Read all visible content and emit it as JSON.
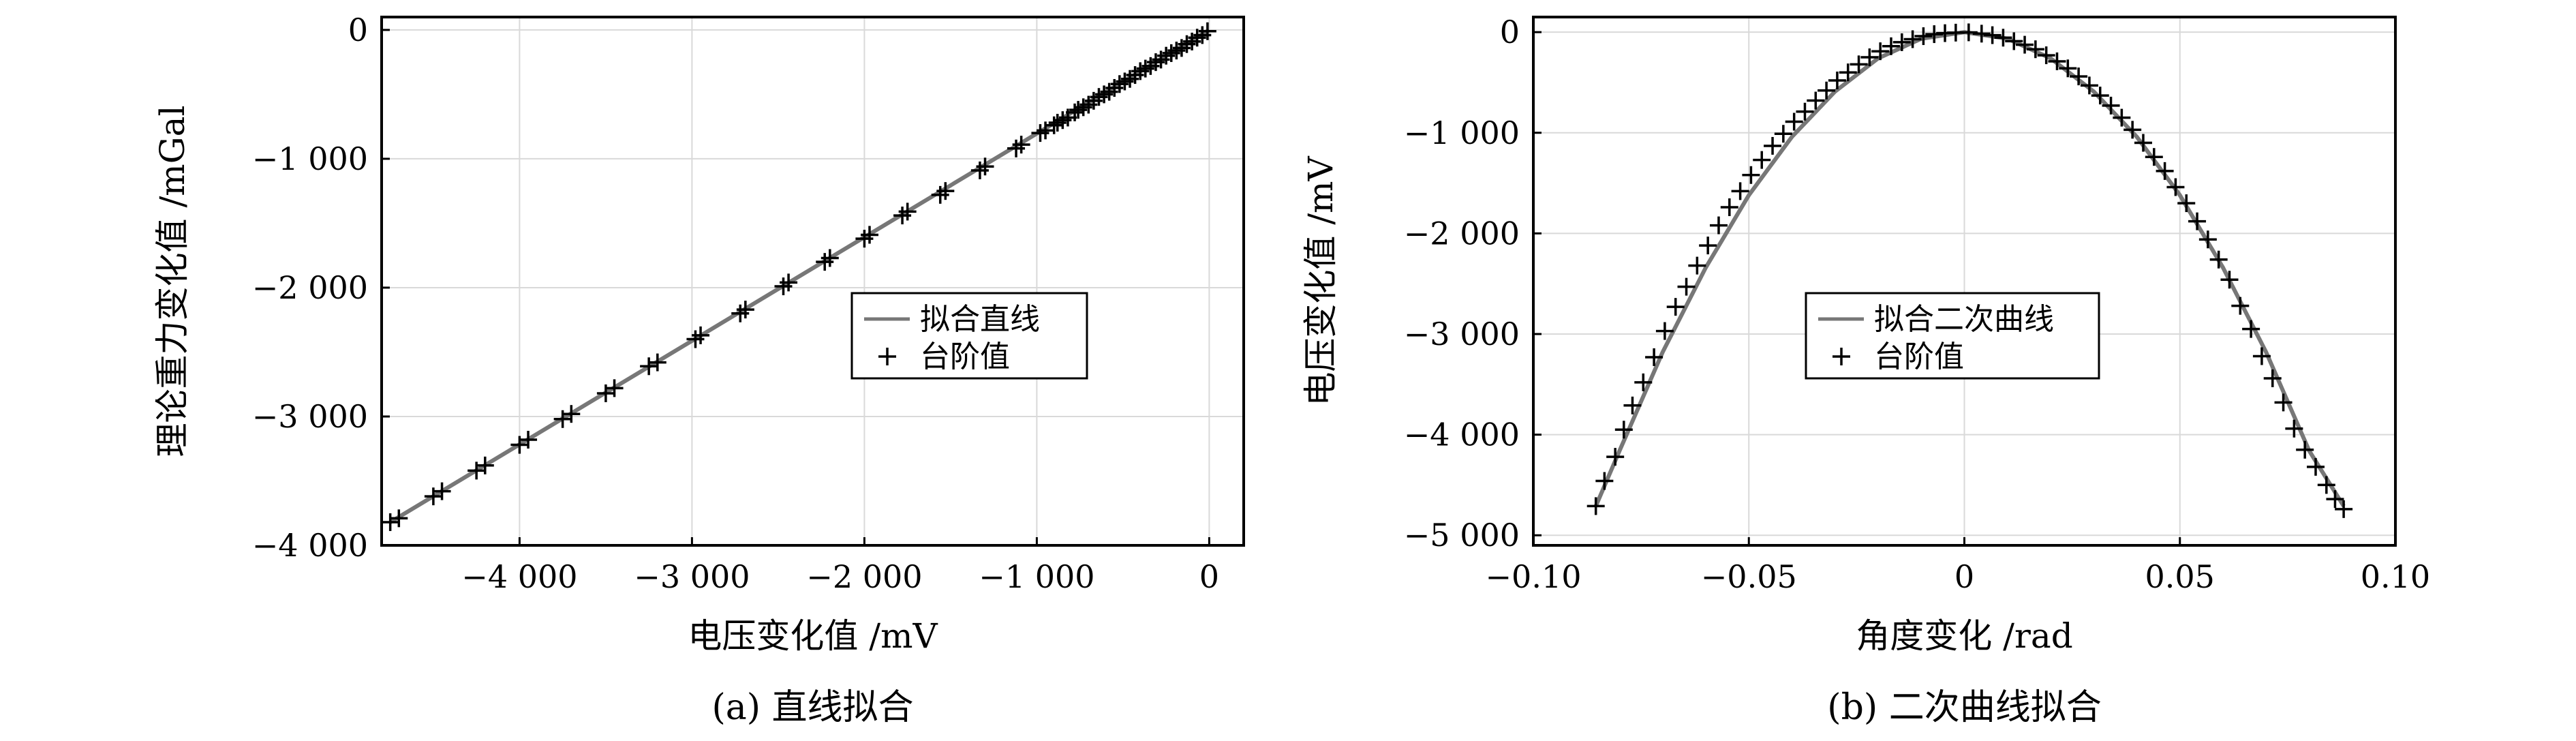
{
  "chart_data": [
    {
      "type": "scatter",
      "caption": "(a) 直线拟合",
      "xlabel": "电压变化值 /mV",
      "ylabel": "理论重力变化值 /mGal",
      "xlim": [
        -4800,
        200
      ],
      "ylim": [
        -4000,
        100
      ],
      "xticks": [
        -4000,
        -3000,
        -2000,
        -1000,
        0
      ],
      "xtick_labels": [
        "−4 000",
        "−3 000",
        "−2 000",
        "−1 000",
        "0"
      ],
      "yticks": [
        0,
        -1000,
        -2000,
        -3000,
        -4000
      ],
      "ytick_labels": [
        "0",
        "−1 000",
        "−2 000",
        "−3 000",
        "−4 000"
      ],
      "grid": true,
      "legend_position": "center-right",
      "series": [
        {
          "name": "拟合直线",
          "kind": "line",
          "color": "#777777",
          "x": [
            -4750,
            0
          ],
          "y": [
            -3820,
            0
          ]
        },
        {
          "name": "台阶值",
          "kind": "marker",
          "marker": "+",
          "color": "#000000",
          "x": [
            -4750,
            -4700,
            -4500,
            -4450,
            -4250,
            -4200,
            -4000,
            -3950,
            -3750,
            -3700,
            -3500,
            -3450,
            -3250,
            -3200,
            -2980,
            -2950,
            -2720,
            -2690,
            -2470,
            -2440,
            -2230,
            -2200,
            -2000,
            -1970,
            -1780,
            -1750,
            -1560,
            -1530,
            -1330,
            -1300,
            -1120,
            -1090,
            -980,
            -950,
            -900,
            -880,
            -850,
            -820,
            -780,
            -760,
            -730,
            -700,
            -670,
            -640,
            -610,
            -580,
            -550,
            -520,
            -490,
            -460,
            -430,
            -400,
            -370,
            -340,
            -310,
            -280,
            -250,
            -220,
            -190,
            -160,
            -130,
            -100,
            -70,
            -40,
            -10
          ],
          "y": [
            -3820,
            -3790,
            -3620,
            -3580,
            -3420,
            -3380,
            -3220,
            -3180,
            -3020,
            -2980,
            -2820,
            -2780,
            -2610,
            -2580,
            -2400,
            -2370,
            -2200,
            -2170,
            -1990,
            -1960,
            -1800,
            -1770,
            -1620,
            -1590,
            -1440,
            -1410,
            -1280,
            -1250,
            -1090,
            -1060,
            -920,
            -890,
            -800,
            -780,
            -740,
            -720,
            -700,
            -680,
            -640,
            -620,
            -600,
            -580,
            -550,
            -520,
            -500,
            -480,
            -450,
            -420,
            -400,
            -380,
            -350,
            -320,
            -300,
            -280,
            -250,
            -230,
            -200,
            -180,
            -160,
            -140,
            -110,
            -90,
            -60,
            -40,
            -10
          ]
        }
      ]
    },
    {
      "type": "scatter",
      "caption": "(b) 二次曲线拟合",
      "xlabel": "角度变化 /rad",
      "ylabel": "电压变化值 /mV",
      "xlim": [
        -0.1,
        0.1
      ],
      "ylim": [
        -5100,
        150
      ],
      "xticks": [
        -0.1,
        -0.05,
        0,
        0.05,
        0.1
      ],
      "xtick_labels": [
        "−0.10",
        "−0.05",
        "0",
        "0.05",
        "0.10"
      ],
      "yticks": [
        0,
        -1000,
        -2000,
        -3000,
        -4000,
        -5000
      ],
      "ytick_labels": [
        "0",
        "−1 000",
        "−2 000",
        "−3 000",
        "−4 000",
        "−5 000"
      ],
      "grid": true,
      "legend_position": "center-right",
      "series": [
        {
          "name": "拟合二次曲线",
          "kind": "line",
          "color": "#777777",
          "x": [
            -0.0855,
            -0.08,
            -0.07,
            -0.06,
            -0.05,
            -0.04,
            -0.03,
            -0.02,
            -0.01,
            0,
            0.01,
            0.02,
            0.03,
            0.04,
            0.05,
            0.06,
            0.07,
            0.08,
            0.088
          ],
          "y": [
            -4710,
            -4160,
            -3180,
            -2340,
            -1620,
            -1040,
            -590,
            -260,
            -65,
            0,
            -65,
            -260,
            -590,
            -1040,
            -1620,
            -2340,
            -3180,
            -4160,
            -4710
          ]
        },
        {
          "name": "台阶值",
          "kind": "marker",
          "marker": "+",
          "color": "#000000",
          "x": [
            -0.0855,
            -0.0835,
            -0.081,
            -0.079,
            -0.077,
            -0.0745,
            -0.072,
            -0.0695,
            -0.067,
            -0.0645,
            -0.062,
            -0.0595,
            -0.057,
            -0.0545,
            -0.052,
            -0.0495,
            -0.047,
            -0.0445,
            -0.042,
            -0.0395,
            -0.037,
            -0.0345,
            -0.032,
            -0.0295,
            -0.027,
            -0.0245,
            -0.022,
            -0.0195,
            -0.017,
            -0.0145,
            -0.012,
            -0.0095,
            -0.007,
            -0.0045,
            -0.002,
            0.001,
            0.004,
            0.0065,
            0.009,
            0.0115,
            0.014,
            0.0165,
            0.019,
            0.0215,
            0.024,
            0.0265,
            0.029,
            0.0315,
            0.034,
            0.0365,
            0.039,
            0.0415,
            0.044,
            0.0465,
            0.049,
            0.0515,
            0.054,
            0.0565,
            0.059,
            0.0615,
            0.064,
            0.0665,
            0.069,
            0.0715,
            0.074,
            0.0765,
            0.079,
            0.0815,
            0.084,
            0.086,
            0.088
          ],
          "y": [
            -4710,
            -4460,
            -4220,
            -3950,
            -3710,
            -3480,
            -3230,
            -2970,
            -2730,
            -2530,
            -2320,
            -2120,
            -1920,
            -1740,
            -1580,
            -1420,
            -1270,
            -1130,
            -1010,
            -890,
            -790,
            -680,
            -580,
            -480,
            -400,
            -320,
            -250,
            -190,
            -140,
            -100,
            -70,
            -40,
            -20,
            -10,
            -5,
            -2,
            -15,
            -30,
            -55,
            -90,
            -125,
            -170,
            -230,
            -290,
            -360,
            -440,
            -530,
            -630,
            -730,
            -850,
            -970,
            -1100,
            -1240,
            -1380,
            -1540,
            -1700,
            -1880,
            -2060,
            -2260,
            -2460,
            -2720,
            -2950,
            -3220,
            -3440,
            -3680,
            -3940,
            -4150,
            -4320,
            -4500,
            -4640,
            -4740
          ]
        }
      ]
    }
  ]
}
